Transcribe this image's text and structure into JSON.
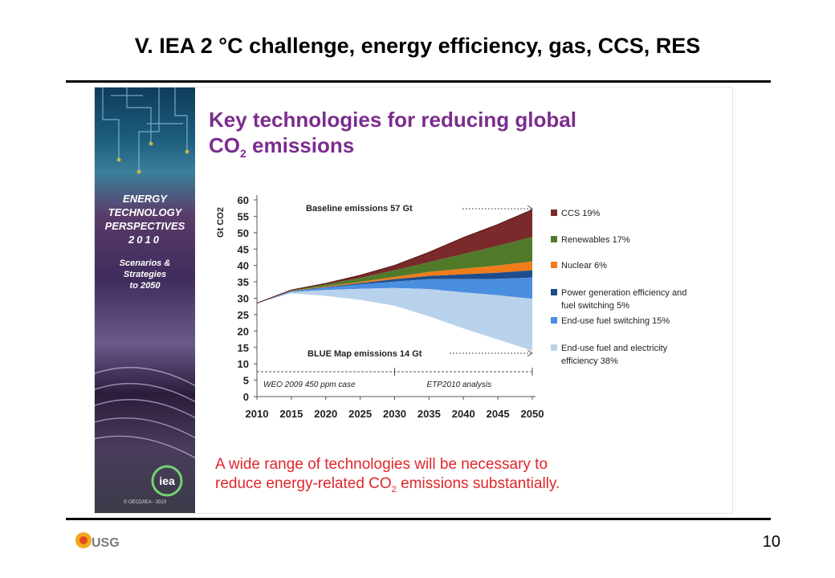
{
  "slide": {
    "title": "V. IEA 2 °C challenge, energy efficiency, gas, CCS, RES",
    "page_number": "10",
    "logo_text": "USG"
  },
  "banner": {
    "line1": "ENERGY",
    "line2": "TECHNOLOGY",
    "line3": "PERSPECTIVES",
    "line4": "2010",
    "sub1": "Scenarios &",
    "sub2": "Strategies",
    "sub3": "to 2050",
    "logo": "iea",
    "copyright": "© OECD/IEA - 2010"
  },
  "figure": {
    "title_line1": "Key technologies for reducing global",
    "title_line2_pre": "CO",
    "title_line2_sub": "2",
    "title_line2_post": " emissions",
    "caption_line1": "A wide range of technologies will be necessary to",
    "caption_line2_pre": "reduce energy-related CO",
    "caption_line2_sub": "2",
    "caption_line2_post": " emissions substantially."
  },
  "chart_data": {
    "type": "area",
    "ylabel": "Gt CO2",
    "ylim": [
      0,
      60
    ],
    "yticks": [
      0,
      5,
      10,
      15,
      20,
      25,
      30,
      35,
      40,
      45,
      50,
      55,
      60
    ],
    "x": [
      2010,
      2015,
      2020,
      2025,
      2030,
      2035,
      2040,
      2045,
      2050
    ],
    "xlim": [
      2010,
      2050
    ],
    "baseline": [
      28.5,
      32.5,
      34.5,
      37,
      40,
      44,
      48.5,
      52.5,
      57
    ],
    "series": [
      {
        "name": "CCS 19%",
        "color": "#7a2a2a",
        "values": [
          0,
          0,
          0.3,
          0.8,
          1.5,
          3,
          5,
          6.5,
          8.3
        ]
      },
      {
        "name": "Renewables 17%",
        "color": "#507a2a",
        "values": [
          0,
          0.2,
          0.6,
          1.2,
          2,
          3,
          4.5,
          6,
          7.5
        ]
      },
      {
        "name": "Nuclear 6%",
        "color": "#f07d1a",
        "values": [
          0,
          0.1,
          0.2,
          0.4,
          0.7,
          1.2,
          1.7,
          2.2,
          2.7
        ]
      },
      {
        "name": "Power generation efficiency and fuel switching 5%",
        "color": "#1f4e8c",
        "values": [
          0,
          0.1,
          0.2,
          0.4,
          0.7,
          1,
          1.5,
          1.9,
          2.2
        ]
      },
      {
        "name": "End-use fuel switching 15%",
        "color": "#4a8ee0",
        "values": [
          0,
          0.2,
          0.7,
          1.3,
          2,
          3,
          4,
          5,
          6.5
        ]
      },
      {
        "name": "End-use fuel and electricity efficiency 38%",
        "color": "#b9d2ec",
        "values": [
          0,
          0.4,
          1.8,
          3.4,
          5.4,
          8.3,
          11,
          13.5,
          15.8
        ]
      }
    ],
    "annotations": {
      "baseline_label": "Baseline emissions 57 Gt",
      "bluemap_label": "BLUE Map emissions 14 Gt",
      "weo_label": "WEO 2009 450 ppm case",
      "etp_label": "ETP2010 analysis"
    },
    "legend_position": "right",
    "grid": false
  }
}
